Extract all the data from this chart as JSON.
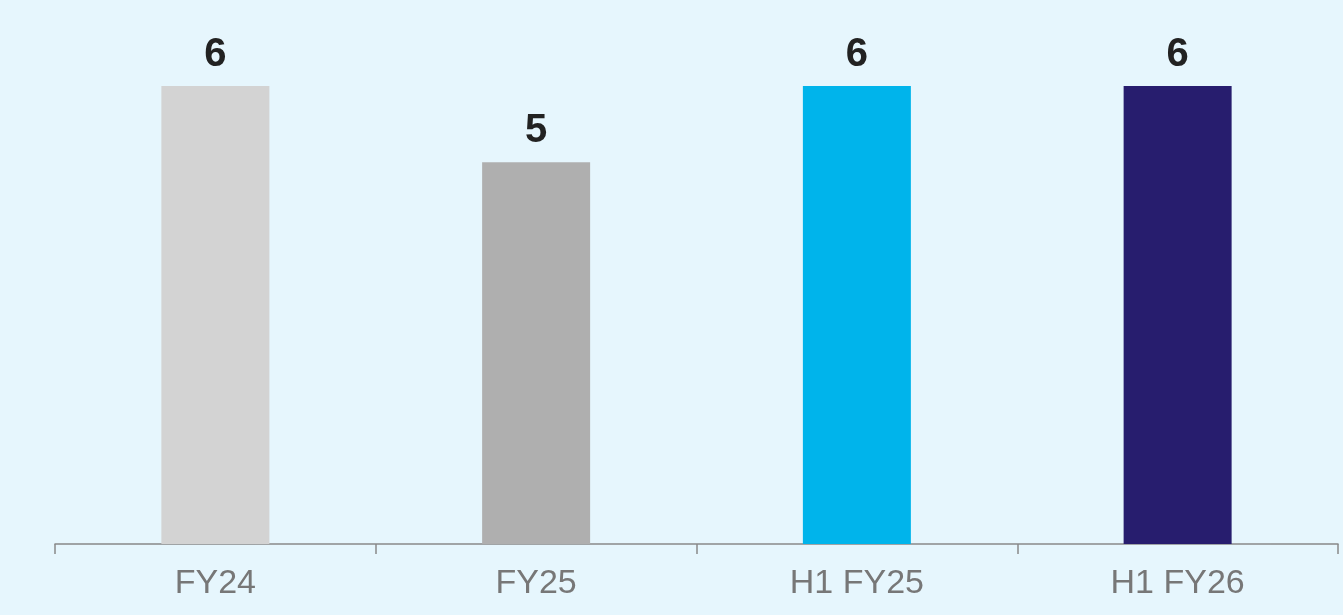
{
  "chart_data": {
    "type": "bar",
    "categories": [
      "FY24",
      "FY25",
      "H1 FY25",
      "H1 FY26"
    ],
    "values": [
      6,
      5,
      6,
      6
    ],
    "colors": [
      "#d3d3d3",
      "#afafaf",
      "#00b4eb",
      "#271d6e"
    ],
    "data_labels": true
  }
}
